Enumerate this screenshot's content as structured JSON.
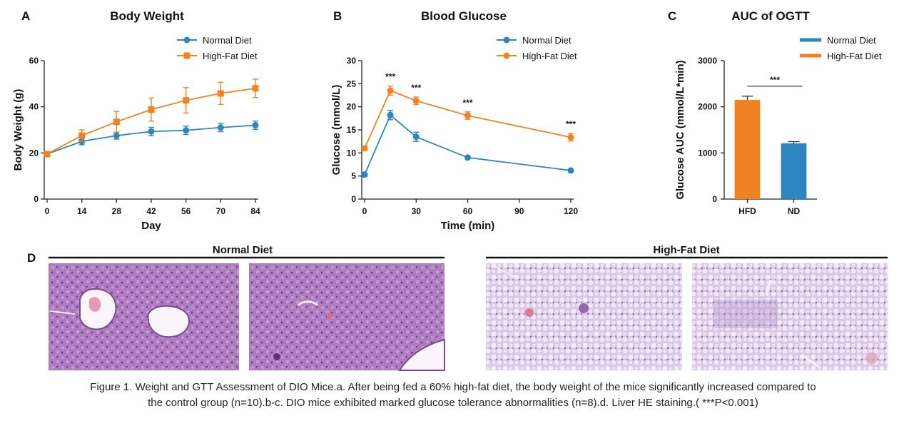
{
  "panel_letters": {
    "a": "A",
    "b": "B",
    "c": "C",
    "d": "D"
  },
  "colors": {
    "normal": "#2e86c1",
    "hfd": "#f08224",
    "tissue": "#b58ac3",
    "tissue_dark": "#7d5a9a"
  },
  "chart_data": [
    {
      "type": "line",
      "title": "Body Weight",
      "xlabel": "Day",
      "ylabel": "Body Weight (g)",
      "x": [
        0,
        14,
        28,
        42,
        56,
        70,
        84
      ],
      "x_ticks": [
        "0",
        "14",
        "28",
        "42",
        "56",
        "70",
        "84"
      ],
      "y_ticks": [
        "0",
        "20",
        "40",
        "60"
      ],
      "ylim": [
        0,
        60
      ],
      "xlim": [
        0,
        84
      ],
      "legend_position": "top-right",
      "series": [
        {
          "name": "Normal Diet",
          "marker": "circle",
          "color": "#2e86c1",
          "values": [
            19.5,
            25,
            27.5,
            29.3,
            29.8,
            31,
            32
          ],
          "err": [
            0.8,
            1.5,
            1.5,
            1.8,
            1.8,
            1.8,
            1.8
          ]
        },
        {
          "name": "High-Fat Diet",
          "marker": "square",
          "color": "#f08224",
          "values": [
            19.5,
            27.5,
            33.5,
            38.8,
            42.8,
            45.8,
            48
          ],
          "err": [
            0.8,
            2.5,
            4.5,
            5,
            5.5,
            4.8,
            4
          ]
        }
      ]
    },
    {
      "type": "line",
      "title": "Blood Glucose",
      "xlabel": "Time (min)",
      "ylabel": "Glucose (mmol/L)",
      "x": [
        0,
        15,
        30,
        60,
        120
      ],
      "x_ticks": [
        "0",
        "30",
        "60",
        "90",
        "120"
      ],
      "y_ticks": [
        "0",
        "5",
        "10",
        "15",
        "20",
        "25",
        "30"
      ],
      "ylim": [
        0,
        30
      ],
      "xlim": [
        0,
        120
      ],
      "legend_position": "top-right",
      "series": [
        {
          "name": "Normal Diet",
          "marker": "circle",
          "color": "#2e86c1",
          "values": [
            5.3,
            18.2,
            13.5,
            9,
            6.2
          ],
          "err": [
            0.3,
            1,
            1,
            0.3,
            0.2
          ]
        },
        {
          "name": "High-Fat Diet",
          "marker": "circle",
          "color": "#f08224",
          "values": [
            11,
            23.5,
            21.3,
            18.1,
            13.4
          ],
          "err": [
            0.5,
            1,
            0.8,
            0.8,
            0.8
          ]
        }
      ],
      "annotations": [
        {
          "x": 15,
          "text": "***"
        },
        {
          "x": 30,
          "text": "***"
        },
        {
          "x": 60,
          "text": "***"
        },
        {
          "x": 120,
          "text": "***"
        }
      ]
    },
    {
      "type": "bar",
      "title": "AUC of OGTT",
      "xlabel": "",
      "ylabel": "Glucose AUC  (mmol/L*min)",
      "categories": [
        "HFD",
        "ND"
      ],
      "values": [
        2150,
        1210
      ],
      "err": [
        80,
        35
      ],
      "colors": [
        "#f08224",
        "#2e86c1"
      ],
      "y_ticks": [
        "0",
        "1000",
        "2000",
        "3000"
      ],
      "ylim": [
        0,
        3000
      ],
      "legend_position": "top-right",
      "legend": [
        "Normal Diet",
        "High-Fat Diet"
      ],
      "legend_colors": [
        "#2e86c1",
        "#f08224"
      ],
      "significance": "***"
    }
  ],
  "histology": {
    "normal_title": "Normal Diet",
    "hfd_title": "High-Fat Diet"
  },
  "caption": {
    "line1": "Figure 1. Weight and GTT Assessment of DIO Mice.a. After being fed a 60% high-fat diet, the body weight of the mice significantly increased compared to",
    "line2": "the control group (n=10).b-c. DIO mice exhibited marked glucose tolerance abnormalities (n=8).d. Liver HE staining.( ***P<0.001)"
  }
}
